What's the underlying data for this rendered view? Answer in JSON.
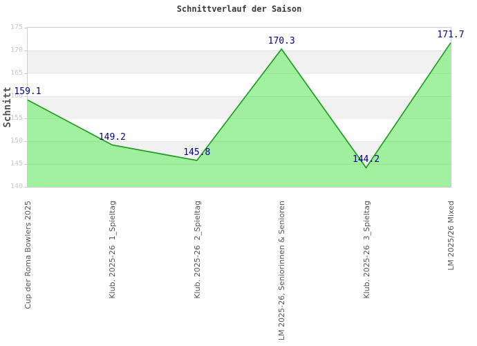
{
  "chart_data": {
    "type": "area",
    "title": "Schnittverlauf der Saison",
    "ylabel": "Schnitt",
    "xlabel": "",
    "categories": [
      "Cup der Roma Bowlers 2025",
      "Klub. 2025-26  1_Spieltag",
      "Klub. 2025-26  2_Spieltag",
      "LM 2025-26, Seniorinnen & Senioren",
      "Klub. 2025-26  3_Spieltag",
      "LM 2025/26 Mixed"
    ],
    "values": [
      159.1,
      149.2,
      145.8,
      170.3,
      144.2,
      171.7
    ],
    "ylim": [
      140,
      175
    ],
    "yticks": [
      175,
      170,
      165,
      160,
      155,
      150,
      145,
      140
    ],
    "grid": "alternating horizontal bands, white and light gray",
    "legend": "none",
    "colors": {
      "area_fill": "#90EE90",
      "line": "#28A028",
      "value_label": "#000080",
      "band_gray": "#f1f1f1",
      "band_white": "#ffffff",
      "tick_text": "#c8c8c8",
      "category_text": "#555555",
      "title_text": "#3a3a3a",
      "plot_border": "#cccccc"
    }
  }
}
